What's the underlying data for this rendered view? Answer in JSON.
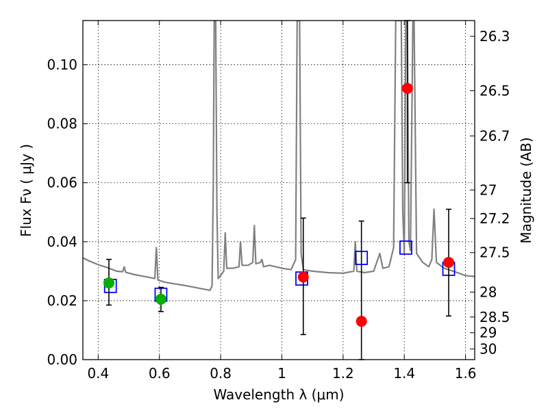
{
  "chart_data": {
    "type": "scatter",
    "xlabel": "Wavelength  λ (μm)",
    "ylabel": "Flux  Fν  ( μJy )",
    "ylabel_right": "Magnitude (AB)",
    "xlim": [
      0.35,
      1.63
    ],
    "ylim": [
      0.0,
      0.115
    ],
    "grid": true,
    "x_ticks": [
      0.4,
      0.6,
      0.8,
      1.0,
      1.2,
      1.4,
      1.6
    ],
    "x_tick_labels": [
      "0.4",
      "0.6",
      "0.8",
      "1",
      "1.2",
      "1.4",
      "1.6"
    ],
    "y_ticks": [
      0.0,
      0.02,
      0.04,
      0.06,
      0.08,
      0.1
    ],
    "y_tick_labels": [
      "0.00",
      "0.02",
      "0.04",
      "0.06",
      "0.08",
      "0.10"
    ],
    "right_ticks": [
      {
        "mag": 26.3,
        "label": "26.3"
      },
      {
        "mag": 26.5,
        "label": "26.5"
      },
      {
        "mag": 26.7,
        "label": "26.7"
      },
      {
        "mag": 27.0,
        "label": "27"
      },
      {
        "mag": 27.2,
        "label": "27.2"
      },
      {
        "mag": 27.5,
        "label": "27.5"
      },
      {
        "mag": 28.0,
        "label": "28"
      },
      {
        "mag": 28.5,
        "label": "28.5"
      },
      {
        "mag": 29.0,
        "label": "29"
      },
      {
        "mag": 30.0,
        "label": "30"
      }
    ],
    "series": [
      {
        "kind": "spectrum",
        "color": "#808080",
        "points": [
          [
            0.35,
            0.0345
          ],
          [
            0.37,
            0.0335
          ],
          [
            0.4,
            0.0322
          ],
          [
            0.43,
            0.0312
          ],
          [
            0.46,
            0.03
          ],
          [
            0.48,
            0.0298
          ],
          [
            0.485,
            0.0315
          ],
          [
            0.49,
            0.0296
          ],
          [
            0.52,
            0.0288
          ],
          [
            0.55,
            0.0282
          ],
          [
            0.585,
            0.0275
          ],
          [
            0.59,
            0.038
          ],
          [
            0.595,
            0.027
          ],
          [
            0.62,
            0.0262
          ],
          [
            0.65,
            0.0257
          ],
          [
            0.68,
            0.0252
          ],
          [
            0.71,
            0.0246
          ],
          [
            0.74,
            0.024
          ],
          [
            0.765,
            0.0235
          ],
          [
            0.772,
            0.025
          ],
          [
            0.776,
            0.06
          ],
          [
            0.779,
            0.115
          ],
          [
            0.784,
            0.115
          ],
          [
            0.788,
            0.05
          ],
          [
            0.792,
            0.0275
          ],
          [
            0.8,
            0.0285
          ],
          [
            0.81,
            0.03
          ],
          [
            0.815,
            0.043
          ],
          [
            0.82,
            0.031
          ],
          [
            0.84,
            0.031
          ],
          [
            0.86,
            0.0315
          ],
          [
            0.865,
            0.04
          ],
          [
            0.87,
            0.032
          ],
          [
            0.89,
            0.032
          ],
          [
            0.905,
            0.033
          ],
          [
            0.91,
            0.0455
          ],
          [
            0.915,
            0.0325
          ],
          [
            0.93,
            0.033
          ],
          [
            0.935,
            0.034
          ],
          [
            0.94,
            0.0315
          ],
          [
            0.96,
            0.032
          ],
          [
            0.98,
            0.0315
          ],
          [
            1.0,
            0.031
          ],
          [
            1.03,
            0.0305
          ],
          [
            1.045,
            0.034
          ],
          [
            1.05,
            0.115
          ],
          [
            1.058,
            0.115
          ],
          [
            1.063,
            0.036
          ],
          [
            1.07,
            0.0305
          ],
          [
            1.1,
            0.03
          ],
          [
            1.15,
            0.0295
          ],
          [
            1.2,
            0.0293
          ],
          [
            1.235,
            0.03
          ],
          [
            1.24,
            0.04
          ],
          [
            1.245,
            0.03
          ],
          [
            1.27,
            0.0295
          ],
          [
            1.3,
            0.03
          ],
          [
            1.32,
            0.036
          ],
          [
            1.33,
            0.031
          ],
          [
            1.35,
            0.0315
          ],
          [
            1.365,
            0.038
          ],
          [
            1.372,
            0.115
          ],
          [
            1.39,
            0.115
          ],
          [
            1.395,
            0.05
          ],
          [
            1.4,
            0.036
          ],
          [
            1.405,
            0.115
          ],
          [
            1.41,
            0.115
          ],
          [
            1.415,
            0.04
          ],
          [
            1.42,
            0.037
          ],
          [
            1.428,
            0.115
          ],
          [
            1.432,
            0.115
          ],
          [
            1.44,
            0.036
          ],
          [
            1.46,
            0.033
          ],
          [
            1.48,
            0.0315
          ],
          [
            1.49,
            0.034
          ],
          [
            1.497,
            0.051
          ],
          [
            1.505,
            0.033
          ],
          [
            1.53,
            0.031
          ],
          [
            1.56,
            0.03
          ],
          [
            1.6,
            0.0285
          ],
          [
            1.63,
            0.0282
          ]
        ]
      },
      {
        "kind": "model-box",
        "color": "#0000ff",
        "points": [
          [
            0.44,
            0.025
          ],
          [
            0.605,
            0.022
          ],
          [
            1.065,
            0.0275
          ],
          [
            1.26,
            0.0345
          ],
          [
            1.405,
            0.038
          ],
          [
            1.545,
            0.0308
          ]
        ]
      },
      {
        "kind": "observed-green",
        "color": "#00b000",
        "points": [
          {
            "x": 0.435,
            "y": 0.026,
            "lo": 0.0185,
            "hi": 0.034
          },
          {
            "x": 0.605,
            "y": 0.0205,
            "lo": 0.0163,
            "hi": 0.0245
          }
        ]
      },
      {
        "kind": "observed-red",
        "color": "#ff0000",
        "points": [
          {
            "x": 1.07,
            "y": 0.028,
            "lo": 0.0085,
            "hi": 0.048
          },
          {
            "x": 1.26,
            "y": 0.013,
            "lo": 0.0,
            "hi": 0.047
          },
          {
            "x": 1.41,
            "y": 0.092,
            "lo": 0.06,
            "hi": 0.115
          },
          {
            "x": 1.545,
            "y": 0.033,
            "lo": 0.0148,
            "hi": 0.051
          }
        ]
      }
    ]
  }
}
